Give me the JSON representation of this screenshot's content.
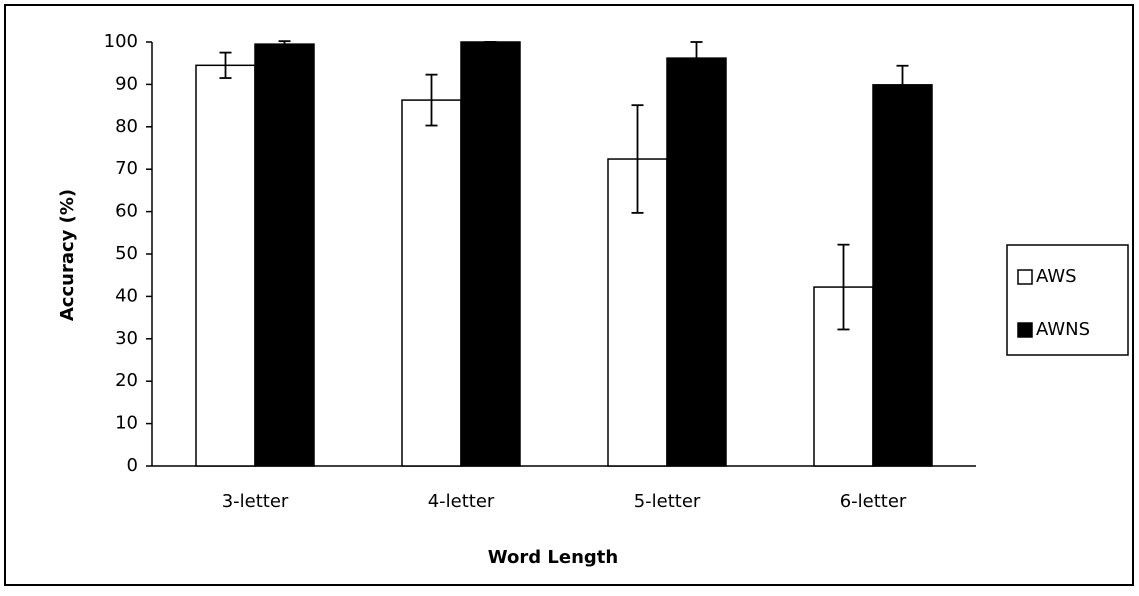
{
  "chart_data": {
    "type": "bar",
    "x_label": "Word Length",
    "y_label": "Accuracy (%)",
    "categories": [
      "3-letter",
      "4-letter",
      "5-letter",
      "6-letter"
    ],
    "series": [
      {
        "name": "AWS",
        "color": "#ffffff",
        "values": [
          94.5,
          86.3,
          72.4,
          42.2
        ],
        "errors": [
          3,
          6,
          12.7,
          10
        ]
      },
      {
        "name": "AWNS",
        "color": "#000000",
        "values": [
          99.5,
          100,
          96.2,
          89.9
        ],
        "errors": [
          0.7,
          0,
          3.8,
          4.5
        ]
      }
    ],
    "ylim": [
      0,
      100
    ],
    "yticks": [
      0,
      10,
      20,
      30,
      40,
      50,
      60,
      70,
      80,
      90,
      100
    ],
    "grid": false,
    "legend": "right"
  }
}
